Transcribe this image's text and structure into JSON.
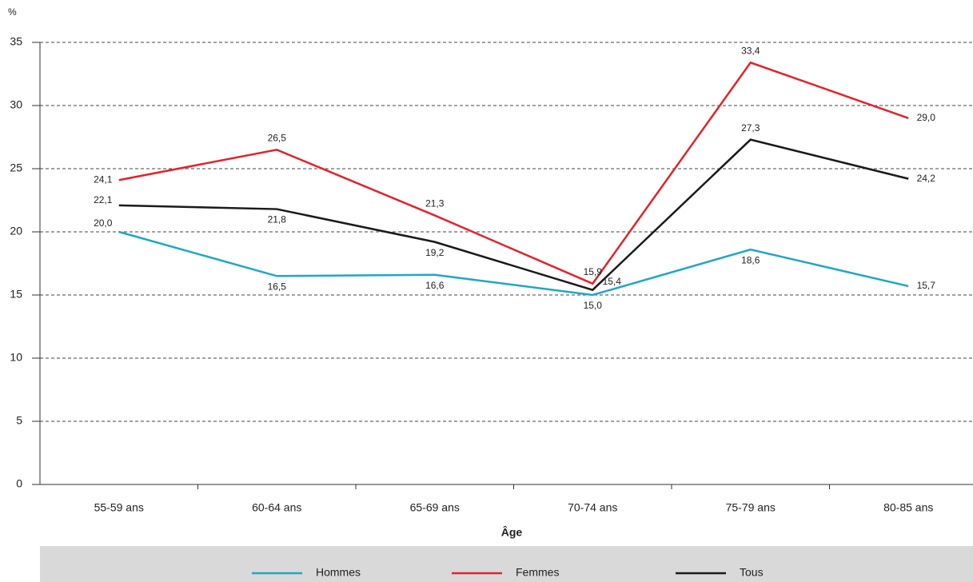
{
  "chart_data": {
    "type": "line",
    "y_label": "%",
    "x_label": "Âge",
    "categories": [
      "55-59 ans",
      "60-64 ans",
      "65-69 ans",
      "70-74 ans",
      "75-79 ans",
      "80-85 ans"
    ],
    "series": [
      {
        "name": "Hommes",
        "color": "#1fa6c9",
        "values": [
          20.0,
          16.5,
          16.6,
          15.0,
          18.6,
          15.7
        ],
        "value_labels": [
          "20,0",
          "16,5",
          "16,6",
          "15,0",
          "18,6",
          "15,7"
        ]
      },
      {
        "name": "Femmes",
        "color": "#e2232a",
        "values": [
          24.1,
          26.5,
          21.3,
          15.9,
          33.4,
          29.0
        ],
        "value_labels": [
          "24,1",
          "26,5",
          "21,3",
          "15,9",
          "33,4",
          "29,0"
        ]
      },
      {
        "name": "Tous",
        "color": "#1a1a1a",
        "values": [
          22.1,
          21.8,
          19.2,
          15.4,
          27.3,
          24.2
        ],
        "value_labels": [
          "22,1",
          "21,8",
          "19,2",
          "15,4",
          "27,3",
          "24,2"
        ]
      }
    ],
    "ylim": [
      0,
      35
    ],
    "yticks": [
      0,
      5,
      10,
      15,
      20,
      25,
      30,
      35
    ],
    "grid": true,
    "legend": "bottom"
  }
}
